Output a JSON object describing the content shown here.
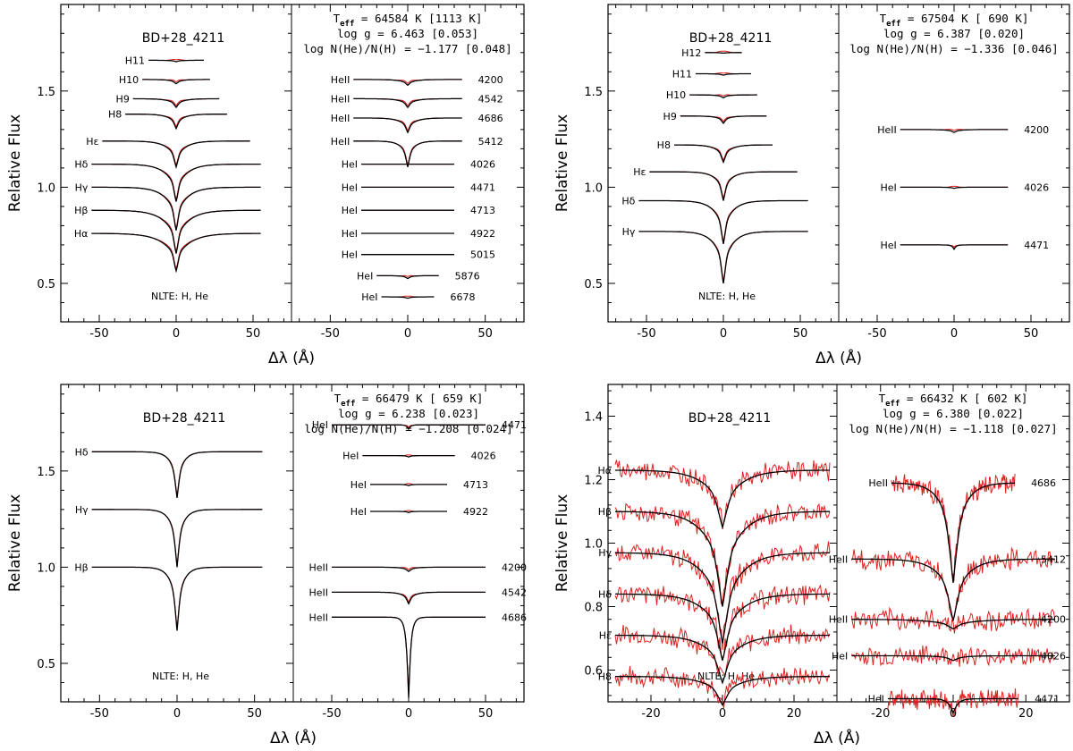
{
  "figure": {
    "ylabel": "Relative Flux",
    "xlabel": "Δλ (Å)"
  },
  "chart_data": [
    {
      "type": "line",
      "title": "BD+28_4211",
      "note": "NLTE: H, He",
      "xlabel": "Δλ (Å)",
      "ylabel": "Relative Flux",
      "left_xlim": [
        -75,
        75
      ],
      "right_xlim": [
        -75,
        75
      ],
      "ylim": [
        0.3,
        1.95
      ],
      "xticks": [
        -50,
        0,
        50
      ],
      "yticks": [
        0.5,
        1.0,
        1.5
      ],
      "params": {
        "teff_label": "T",
        "teff_sub": "eff",
        "teff_value": " = 64584 K [1113 K]",
        "logg": "log g = 6.463 [0.053]",
        "loghe": "log N(He)/N(H) = −1.177 [0.048]"
      },
      "left_lines": [
        {
          "label": "Hα",
          "level": 0.76,
          "depth": 0.13,
          "width": 9,
          "half": 55
        },
        {
          "label": "Hβ",
          "level": 0.88,
          "depth": 0.15,
          "width": 8,
          "half": 55
        },
        {
          "label": "Hγ",
          "level": 1.0,
          "depth": 0.15,
          "width": 7,
          "half": 55
        },
        {
          "label": "Hδ",
          "level": 1.12,
          "depth": 0.13,
          "width": 7,
          "half": 55
        },
        {
          "label": "Hε",
          "level": 1.24,
          "depth": 0.09,
          "width": 6,
          "half": 48
        },
        {
          "label": "H8",
          "level": 1.38,
          "depth": 0.05,
          "width": 5,
          "half": 33
        },
        {
          "label": "H9",
          "level": 1.46,
          "depth": 0.03,
          "width": 5,
          "half": 28
        },
        {
          "label": "H10",
          "level": 1.56,
          "depth": 0.015,
          "width": 4,
          "half": 22
        },
        {
          "label": "H11",
          "level": 1.66,
          "depth": 0.005,
          "width": 4,
          "half": 18
        }
      ],
      "right_lines": [
        {
          "label": "HeII",
          "wave": "4200",
          "level": 1.56,
          "depth": 0.02,
          "width": 5,
          "half": 35
        },
        {
          "label": "HeII",
          "wave": "4542",
          "level": 1.46,
          "depth": 0.03,
          "width": 5,
          "half": 35
        },
        {
          "label": "HeII",
          "wave": "4686",
          "level": 1.36,
          "depth": 0.05,
          "width": 5,
          "half": 35
        },
        {
          "label": "HeII",
          "wave": "5412",
          "level": 1.24,
          "depth": 0.09,
          "width": 4,
          "half": 35
        },
        {
          "label": "HeI",
          "wave": "4026",
          "level": 1.12,
          "depth": 0.0,
          "width": 3,
          "half": 30
        },
        {
          "label": "HeI",
          "wave": "4471",
          "level": 1.0,
          "depth": 0.0,
          "width": 3,
          "half": 30
        },
        {
          "label": "HeI",
          "wave": "4713",
          "level": 0.88,
          "depth": 0.0,
          "width": 3,
          "half": 30
        },
        {
          "label": "HeI",
          "wave": "4922",
          "level": 0.76,
          "depth": 0.0,
          "width": 3,
          "half": 30
        },
        {
          "label": "HeI",
          "wave": "5015",
          "level": 0.65,
          "depth": 0.0,
          "width": 3,
          "half": 30
        },
        {
          "label": "HeI",
          "wave": "5876",
          "level": 0.54,
          "depth": 0.01,
          "width": 3,
          "half": 20
        },
        {
          "label": "HeI",
          "wave": "6678",
          "level": 0.43,
          "depth": 0.005,
          "width": 3,
          "half": 17
        }
      ]
    },
    {
      "type": "line",
      "title": "BD+28_4211",
      "note": "NLTE: H, He",
      "xlabel": "Δλ (Å)",
      "ylabel": "Relative Flux",
      "left_xlim": [
        -75,
        75
      ],
      "right_xlim": [
        -75,
        75
      ],
      "ylim": [
        0.3,
        1.95
      ],
      "xticks": [
        -50,
        0,
        50
      ],
      "yticks": [
        0.5,
        1.0,
        1.5
      ],
      "params": {
        "teff_label": "T",
        "teff_sub": "eff",
        "teff_value": " = 67504 K [ 690 K]",
        "logg": "log g = 6.387 [0.020]",
        "loghe": "log N(He)/N(H) = −1.336 [0.046]"
      },
      "left_lines": [
        {
          "label": "Hγ",
          "level": 0.77,
          "depth": 0.18,
          "width": 6,
          "half": 55
        },
        {
          "label": "Hδ",
          "level": 0.93,
          "depth": 0.15,
          "width": 6,
          "half": 55
        },
        {
          "label": "Hε",
          "level": 1.08,
          "depth": 0.1,
          "width": 5,
          "half": 48
        },
        {
          "label": "H8",
          "level": 1.22,
          "depth": 0.06,
          "width": 5,
          "half": 32
        },
        {
          "label": "H9",
          "level": 1.37,
          "depth": 0.025,
          "width": 4,
          "half": 28
        },
        {
          "label": "H10",
          "level": 1.48,
          "depth": 0.01,
          "width": 4,
          "half": 22
        },
        {
          "label": "H11",
          "level": 1.59,
          "depth": 0.005,
          "width": 4,
          "half": 18
        },
        {
          "label": "H12",
          "level": 1.7,
          "depth": 0.002,
          "width": 4,
          "half": 12
        }
      ],
      "right_lines": [
        {
          "label": "HeII",
          "wave": "4200",
          "level": 1.3,
          "depth": 0.01,
          "width": 5,
          "half": 35
        },
        {
          "label": "HeI",
          "wave": "4026",
          "level": 1.0,
          "depth": 0.004,
          "width": 3,
          "half": 35
        },
        {
          "label": "HeI",
          "wave": "4471",
          "level": 0.7,
          "depth": 0.015,
          "width": 1.5,
          "half": 35
        }
      ]
    },
    {
      "type": "line",
      "title": "BD+28_4211",
      "note": "NLTE: H, He",
      "xlabel": "Δλ (Å)",
      "ylabel": "Relative Flux",
      "left_xlim": [
        -75,
        75
      ],
      "right_xlim": [
        -75,
        75
      ],
      "ylim": [
        0.3,
        1.95
      ],
      "xticks": [
        -50,
        0,
        50
      ],
      "yticks": [
        0.5,
        1.0,
        1.5
      ],
      "params": {
        "teff_label": "T",
        "teff_sub": "eff",
        "teff_value": " = 66479 K [ 659 K]",
        "logg": "log g = 6.238 [0.023]",
        "loghe": "log N(He)/N(H) = −1.208 [0.024]"
      },
      "left_lines": [
        {
          "label": "Hβ",
          "level": 1.0,
          "depth": 0.22,
          "width": 4,
          "half": 55
        },
        {
          "label": "Hγ",
          "level": 1.3,
          "depth": 0.2,
          "width": 4,
          "half": 55
        },
        {
          "label": "Hδ",
          "level": 1.6,
          "depth": 0.16,
          "width": 4,
          "half": 55
        }
      ],
      "right_lines": [
        {
          "label": "HeI",
          "wave": "4471",
          "level": 1.74,
          "depth": 0.015,
          "width": 1.5,
          "half": 50
        },
        {
          "label": "HeI",
          "wave": "4026",
          "level": 1.58,
          "depth": 0.005,
          "width": 2,
          "half": 30
        },
        {
          "label": "HeI",
          "wave": "4713",
          "level": 1.43,
          "depth": 0.004,
          "width": 2,
          "half": 25
        },
        {
          "label": "HeI",
          "wave": "4922",
          "level": 1.29,
          "depth": 0.004,
          "width": 2,
          "half": 25
        },
        {
          "label": "HeII",
          "wave": "4200",
          "level": 1.0,
          "depth": 0.015,
          "width": 4,
          "half": 50
        },
        {
          "label": "HeII",
          "wave": "4542",
          "level": 0.87,
          "depth": 0.04,
          "width": 4,
          "half": 50
        },
        {
          "label": "HeII",
          "wave": "4686",
          "level": 0.74,
          "depth": 0.28,
          "width": 1.8,
          "half": 50
        }
      ]
    },
    {
      "type": "line",
      "title": "BD+28_4211",
      "note": "NLTE: H, He",
      "xlabel": "Δλ (Å)",
      "ylabel": "Relative Flux",
      "left_xlim": [
        -32,
        32
      ],
      "right_xlim": [
        -32,
        32
      ],
      "ylim": [
        0.5,
        1.5
      ],
      "xticks": [
        -20,
        0,
        20
      ],
      "yticks": [
        0.6,
        0.8,
        1.0,
        1.2,
        1.4
      ],
      "params": {
        "teff_label": "T",
        "teff_sub": "eff",
        "teff_value": " = 66432 K [ 602 K]",
        "logg": "log g = 6.380 [0.022]",
        "loghe": "log N(He)/N(H) = −1.118 [0.027]"
      },
      "left_lines": [
        {
          "label": "H8",
          "level": 0.58,
          "depth": 0.06,
          "width": 5,
          "half": 30
        },
        {
          "label": "Hε",
          "level": 0.71,
          "depth": 0.1,
          "width": 5,
          "half": 30
        },
        {
          "label": "Hδ",
          "level": 0.84,
          "depth": 0.14,
          "width": 5,
          "half": 30
        },
        {
          "label": "Hγ",
          "level": 0.97,
          "depth": 0.19,
          "width": 5,
          "half": 30
        },
        {
          "label": "Hβ",
          "level": 1.1,
          "depth": 0.2,
          "width": 5,
          "half": 30
        },
        {
          "label": "Hα",
          "level": 1.23,
          "depth": 0.12,
          "width": 5,
          "half": 30
        }
      ],
      "right_lines": [
        {
          "label": "HeI",
          "wave": "4471",
          "level": 0.51,
          "depth": 0.03,
          "width": 1.5,
          "half": 18
        },
        {
          "label": "HeI",
          "wave": "4026",
          "level": 0.645,
          "depth": 0.01,
          "width": 3,
          "half": 28
        },
        {
          "label": "HeII",
          "wave": "4200",
          "level": 0.76,
          "depth": 0.02,
          "width": 6,
          "half": 28
        },
        {
          "label": "HeII",
          "wave": "5412",
          "level": 0.95,
          "depth": 0.13,
          "width": 4,
          "half": 28
        },
        {
          "label": "HeII",
          "wave": "4686",
          "level": 1.19,
          "depth": 0.21,
          "width": 3,
          "half": 17
        }
      ]
    }
  ]
}
